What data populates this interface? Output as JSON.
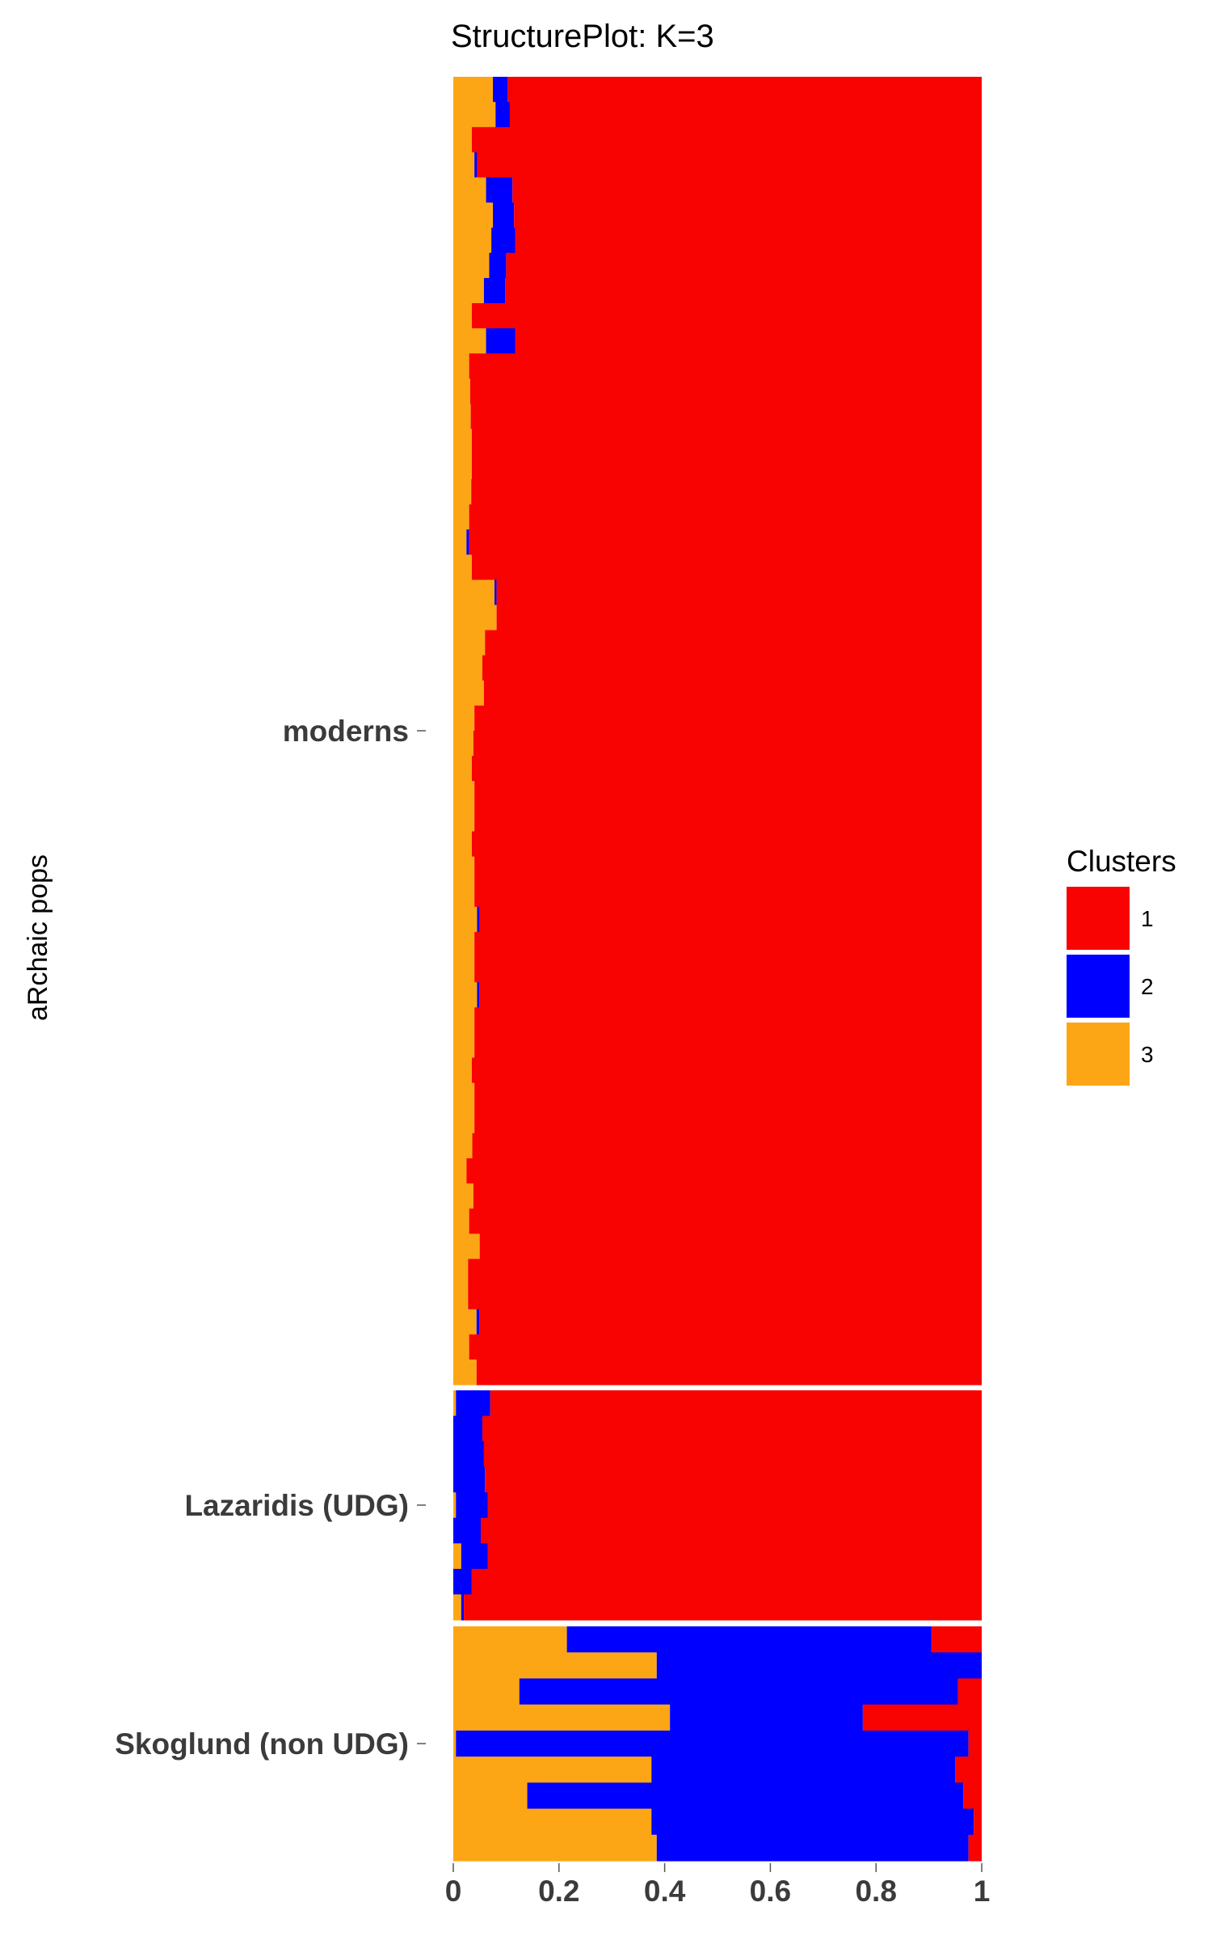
{
  "chart_data": {
    "type": "bar",
    "orientation": "horizontal",
    "stacked": true,
    "title": "StructurePlot: K=3",
    "ylabel": "aRchaic pops",
    "xlim": [
      0,
      1
    ],
    "x_ticks": [
      "0",
      "0.2",
      "0.4",
      "0.6",
      "0.8",
      "1"
    ],
    "legend": {
      "title": "Clusters",
      "position": "right",
      "items": [
        {
          "label": "1",
          "color": "#f80202"
        },
        {
          "label": "2",
          "color": "#0000ff"
        },
        {
          "label": "3",
          "color": "#fca616"
        }
      ]
    },
    "groups": [
      {
        "name": "moderns",
        "rows": [
          [
            0.075,
            0.028
          ],
          [
            0.08,
            0.027
          ],
          [
            0.035,
            0.0
          ],
          [
            0.04,
            0.005
          ],
          [
            0.062,
            0.05
          ],
          [
            0.075,
            0.04
          ],
          [
            0.072,
            0.045
          ],
          [
            0.068,
            0.032
          ],
          [
            0.058,
            0.04
          ],
          [
            0.035,
            0.0
          ],
          [
            0.062,
            0.055
          ],
          [
            0.03,
            0.0
          ],
          [
            0.032,
            0.0
          ],
          [
            0.033,
            0.0
          ],
          [
            0.035,
            0.0
          ],
          [
            0.035,
            0.0
          ],
          [
            0.034,
            0.0
          ],
          [
            0.03,
            0.0
          ],
          [
            0.025,
            0.005
          ],
          [
            0.035,
            0.0
          ],
          [
            0.078,
            0.004
          ],
          [
            0.082,
            0.0
          ],
          [
            0.06,
            0.0
          ],
          [
            0.055,
            0.0
          ],
          [
            0.058,
            0.0
          ],
          [
            0.04,
            0.0
          ],
          [
            0.038,
            0.0
          ],
          [
            0.035,
            0.0
          ],
          [
            0.04,
            0.0
          ],
          [
            0.04,
            0.0
          ],
          [
            0.035,
            0.0
          ],
          [
            0.04,
            0.0
          ],
          [
            0.04,
            0.0
          ],
          [
            0.045,
            0.005
          ],
          [
            0.04,
            0.0
          ],
          [
            0.04,
            0.0
          ],
          [
            0.045,
            0.004
          ],
          [
            0.04,
            0.0
          ],
          [
            0.04,
            0.0
          ],
          [
            0.035,
            0.0
          ],
          [
            0.04,
            0.0
          ],
          [
            0.04,
            0.0
          ],
          [
            0.036,
            0.0
          ],
          [
            0.025,
            0.0
          ],
          [
            0.038,
            0.0
          ],
          [
            0.03,
            0.0
          ],
          [
            0.05,
            0.0
          ],
          [
            0.028,
            0.0
          ],
          [
            0.028,
            0.0
          ],
          [
            0.044,
            0.005
          ],
          [
            0.03,
            0.0
          ],
          [
            0.044,
            0.0
          ]
        ]
      },
      {
        "name": "Lazaridis (UDG)",
        "rows": [
          [
            0.005,
            0.065
          ],
          [
            0.0,
            0.055
          ],
          [
            0.0,
            0.058
          ],
          [
            0.0,
            0.06
          ],
          [
            0.005,
            0.06
          ],
          [
            0.0,
            0.052
          ],
          [
            0.015,
            0.05
          ],
          [
            0.0,
            0.035
          ],
          [
            0.015,
            0.005
          ]
        ]
      },
      {
        "name": "Skoglund (non UDG)",
        "rows": [
          [
            0.215,
            0.69
          ],
          [
            0.385,
            0.615
          ],
          [
            0.125,
            0.83
          ],
          [
            0.41,
            0.365
          ],
          [
            0.005,
            0.97
          ],
          [
            0.375,
            0.575
          ],
          [
            0.14,
            0.825
          ],
          [
            0.375,
            0.61
          ],
          [
            0.385,
            0.59
          ]
        ]
      }
    ],
    "row_value_order": [
      "cluster 3",
      "cluster 2",
      "cluster 1 = remainder"
    ]
  }
}
